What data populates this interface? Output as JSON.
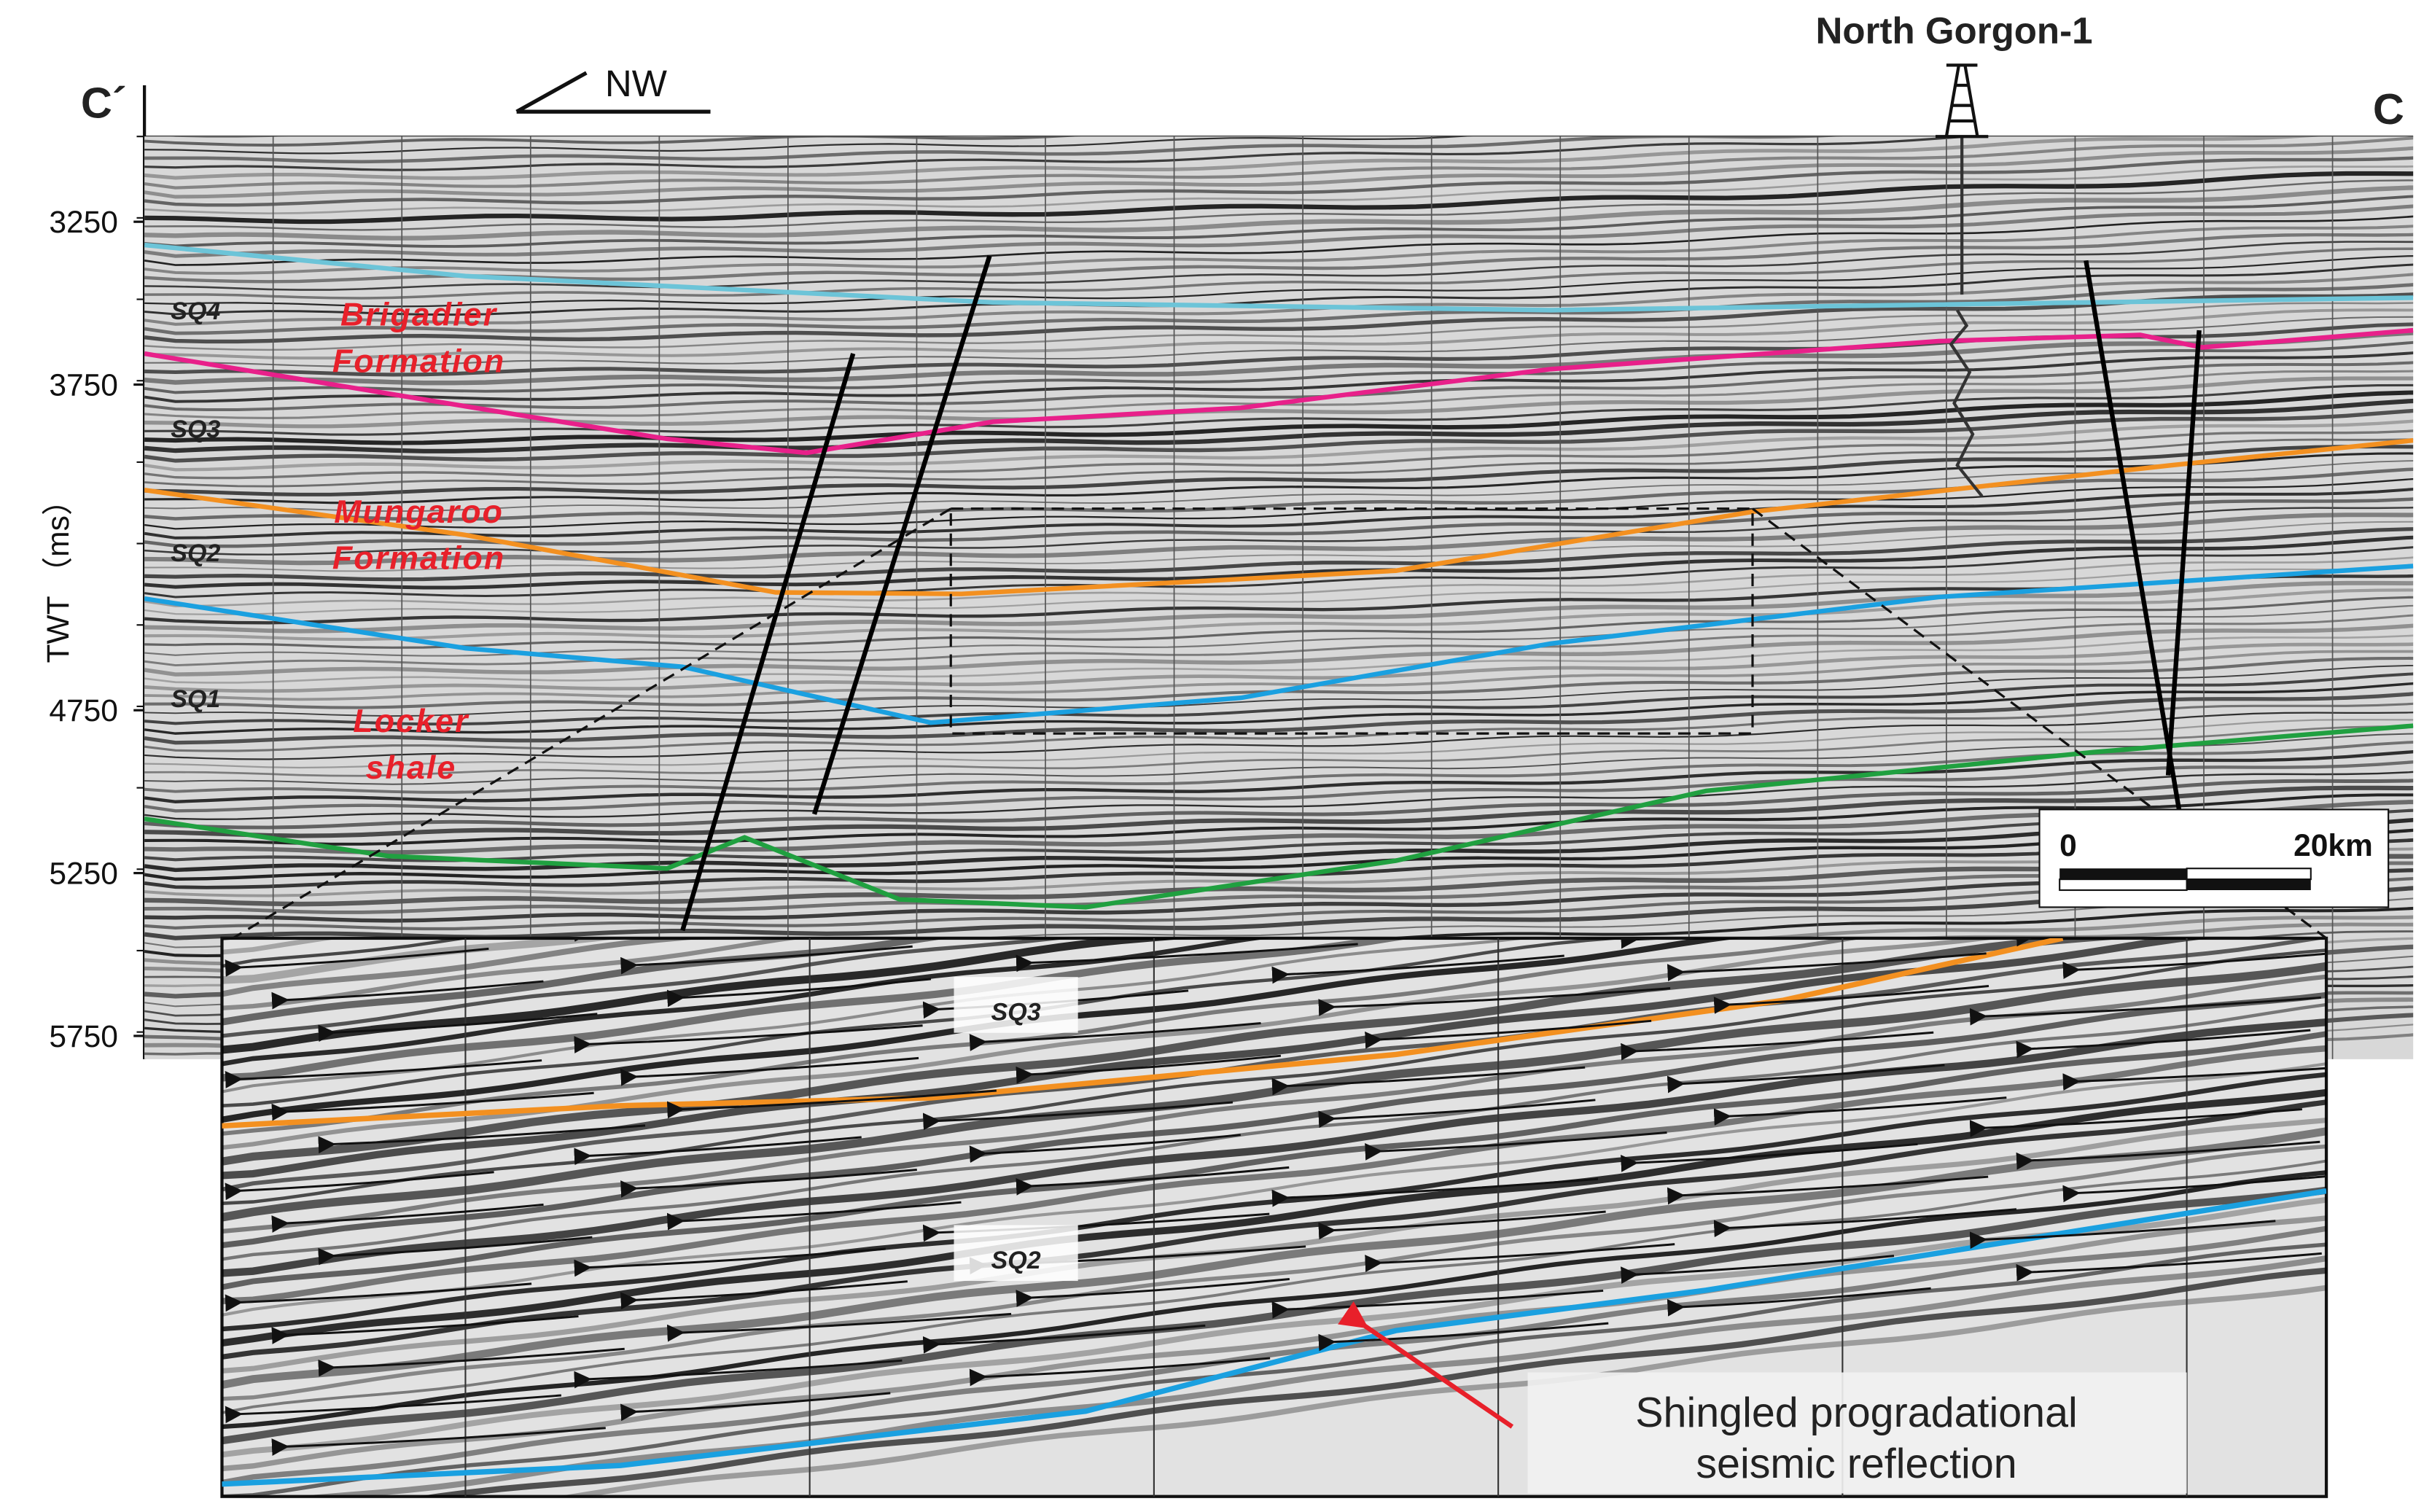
{
  "figure": {
    "left_label": "C´",
    "right_label": "C",
    "direction": "NW",
    "well": "North Gorgon-1",
    "axis": {
      "label": "TWT （ms）",
      "ticks": [
        3250,
        3750,
        4750,
        5250,
        5750
      ]
    },
    "sequences": [
      "SQ4",
      "SQ3",
      "SQ2",
      "SQ1"
    ],
    "formations": [
      [
        "Brigadier",
        "Formation"
      ],
      [
        "Mungaroo",
        "Formation"
      ],
      [
        "Locker",
        "shale"
      ]
    ],
    "scale_bar": {
      "start": "0",
      "end": "20km"
    },
    "inset": {
      "sequences": [
        "SQ3",
        "SQ2"
      ],
      "note": [
        "Shingled progradational",
        "seismic reflection"
      ]
    }
  }
}
